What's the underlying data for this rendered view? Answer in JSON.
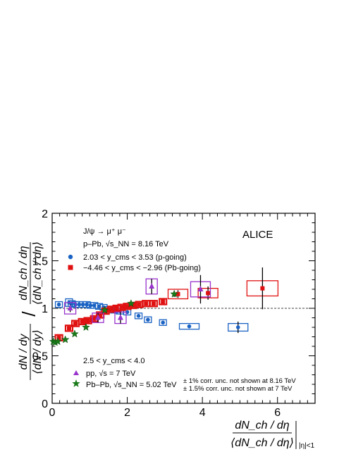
{
  "chart_data": {
    "type": "scatter",
    "experiment_label": "ALICE",
    "xlabel": {
      "numerator": "dN_ch / dη",
      "denominator": "⟨dN_ch / dη⟩",
      "subscript": "|η|<1"
    },
    "ylabel": {
      "numerator": "dN / dy",
      "denominator": "⟨dN / dy⟩",
      "divisor_numerator": "dN_ch / dη",
      "divisor_denominator": "⟨dN_ch / dη⟩"
    },
    "xlim": [
      0,
      7
    ],
    "ylim": [
      0,
      2
    ],
    "x_ticks": [
      0,
      2,
      4,
      6
    ],
    "y_ticks": [
      0,
      0.5,
      1,
      1.5,
      2
    ],
    "x_tick_labels": [
      "0",
      "2",
      "4",
      "6"
    ],
    "y_tick_labels": [
      "0",
      "0.5",
      "1",
      "1.5",
      "2"
    ],
    "reference_line": 1,
    "legend_top": {
      "process": "J/ψ → μ⁺ μ⁻",
      "system": "p–Pb, √s_NN = 8.16 TeV",
      "entries": [
        "2.03 < y_cms < 3.53 (p-going)",
        "−4.46 < y_cms < −2.96 (Pb-going)"
      ]
    },
    "legend_bottom": {
      "rapidity": "2.5 < y_cms < 4.0",
      "entries": [
        "pp, √s = 7 TeV",
        "Pb–Pb, √s_NN = 5.02 TeV"
      ],
      "notes": [
        "± 1% corr. unc. not shown at 8.16 TeV",
        "± 1.5% corr. unc. not shown at 7 TeV"
      ]
    },
    "series": [
      {
        "name": "2.03 < y_cms < 3.53 (p-going)",
        "color": "#1a63c4",
        "marker": "circle",
        "x": [
          0.18,
          0.45,
          0.52,
          0.62,
          0.72,
          0.82,
          0.92,
          1.02,
          1.12,
          1.25,
          1.37,
          1.52,
          1.65,
          1.8,
          2.0,
          2.3,
          2.55,
          2.95,
          3.65,
          4.95
        ],
        "y": [
          1.04,
          1.06,
          1.05,
          1.04,
          1.04,
          1.04,
          1.04,
          1.03,
          1.03,
          1.02,
          1.01,
          0.99,
          0.98,
          0.97,
          0.96,
          0.92,
          0.88,
          0.85,
          0.81,
          0.8
        ],
        "yerr": [
          0.02,
          0.01,
          0.01,
          0.01,
          0.01,
          0.01,
          0.01,
          0.01,
          0.01,
          0.01,
          0.01,
          0.01,
          0.01,
          0.01,
          0.01,
          0.02,
          0.02,
          0.02,
          0.02,
          0.06
        ],
        "sys": [
          0.03,
          0.04,
          0.03,
          0.03,
          0.03,
          0.03,
          0.03,
          0.03,
          0.03,
          0.03,
          0.03,
          0.03,
          0.03,
          0.03,
          0.03,
          0.03,
          0.03,
          0.03,
          0.03,
          0.04
        ]
      },
      {
        "name": "−4.46 < y_cms < −2.96 (Pb-going)",
        "color": "#e01010",
        "marker": "square",
        "x": [
          0.18,
          0.45,
          0.62,
          0.8,
          0.95,
          1.12,
          1.28,
          1.42,
          1.58,
          1.72,
          1.85,
          2.0,
          2.15,
          2.32,
          2.5,
          2.7,
          2.95,
          3.35,
          4.15,
          5.6
        ],
        "y": [
          0.69,
          0.79,
          0.84,
          0.86,
          0.87,
          0.89,
          0.93,
          0.97,
          0.99,
          1.0,
          1.01,
          1.02,
          1.03,
          1.04,
          1.05,
          1.05,
          1.07,
          1.15,
          1.16,
          1.21
        ],
        "yerr": [
          0.01,
          0.01,
          0.01,
          0.01,
          0.01,
          0.01,
          0.01,
          0.01,
          0.01,
          0.01,
          0.01,
          0.01,
          0.01,
          0.01,
          0.01,
          0.02,
          0.02,
          0.04,
          0.07,
          0.22
        ],
        "sys": [
          0.03,
          0.03,
          0.03,
          0.03,
          0.03,
          0.03,
          0.03,
          0.03,
          0.03,
          0.03,
          0.03,
          0.03,
          0.03,
          0.03,
          0.03,
          0.03,
          0.03,
          0.05,
          0.05,
          0.08
        ]
      },
      {
        "name": "pp, √s = 7 TeV",
        "color": "#9933cc",
        "marker": "triangle",
        "x": [
          0.48,
          1.22,
          1.82,
          2.65,
          3.95
        ],
        "y": [
          1.0,
          0.9,
          0.9,
          1.23,
          1.2
        ],
        "yerr": [
          0.04,
          0.05,
          0.06,
          0.08,
          0.15
        ],
        "sys": [
          0.06,
          0.05,
          0.06,
          0.08,
          0.08
        ]
      },
      {
        "name": "Pb–Pb, √s_NN = 5.02 TeV",
        "color": "#1a7a1a",
        "marker": "star",
        "x": [
          0.03,
          0.08,
          0.15,
          0.35,
          0.6,
          0.9,
          1.4,
          2.1,
          3.25
        ],
        "y": [
          0.65,
          0.64,
          0.65,
          0.67,
          0.73,
          0.8,
          0.98,
          1.05,
          1.15
        ],
        "yerr": [
          0.01,
          0.01,
          0.01,
          0.01,
          0.01,
          0.01,
          0.02,
          0.02,
          0.03
        ],
        "sys": [
          0.01,
          0.01,
          0.01,
          0.01,
          0.01,
          0.01,
          0.02,
          0.02,
          0.02
        ]
      }
    ]
  }
}
